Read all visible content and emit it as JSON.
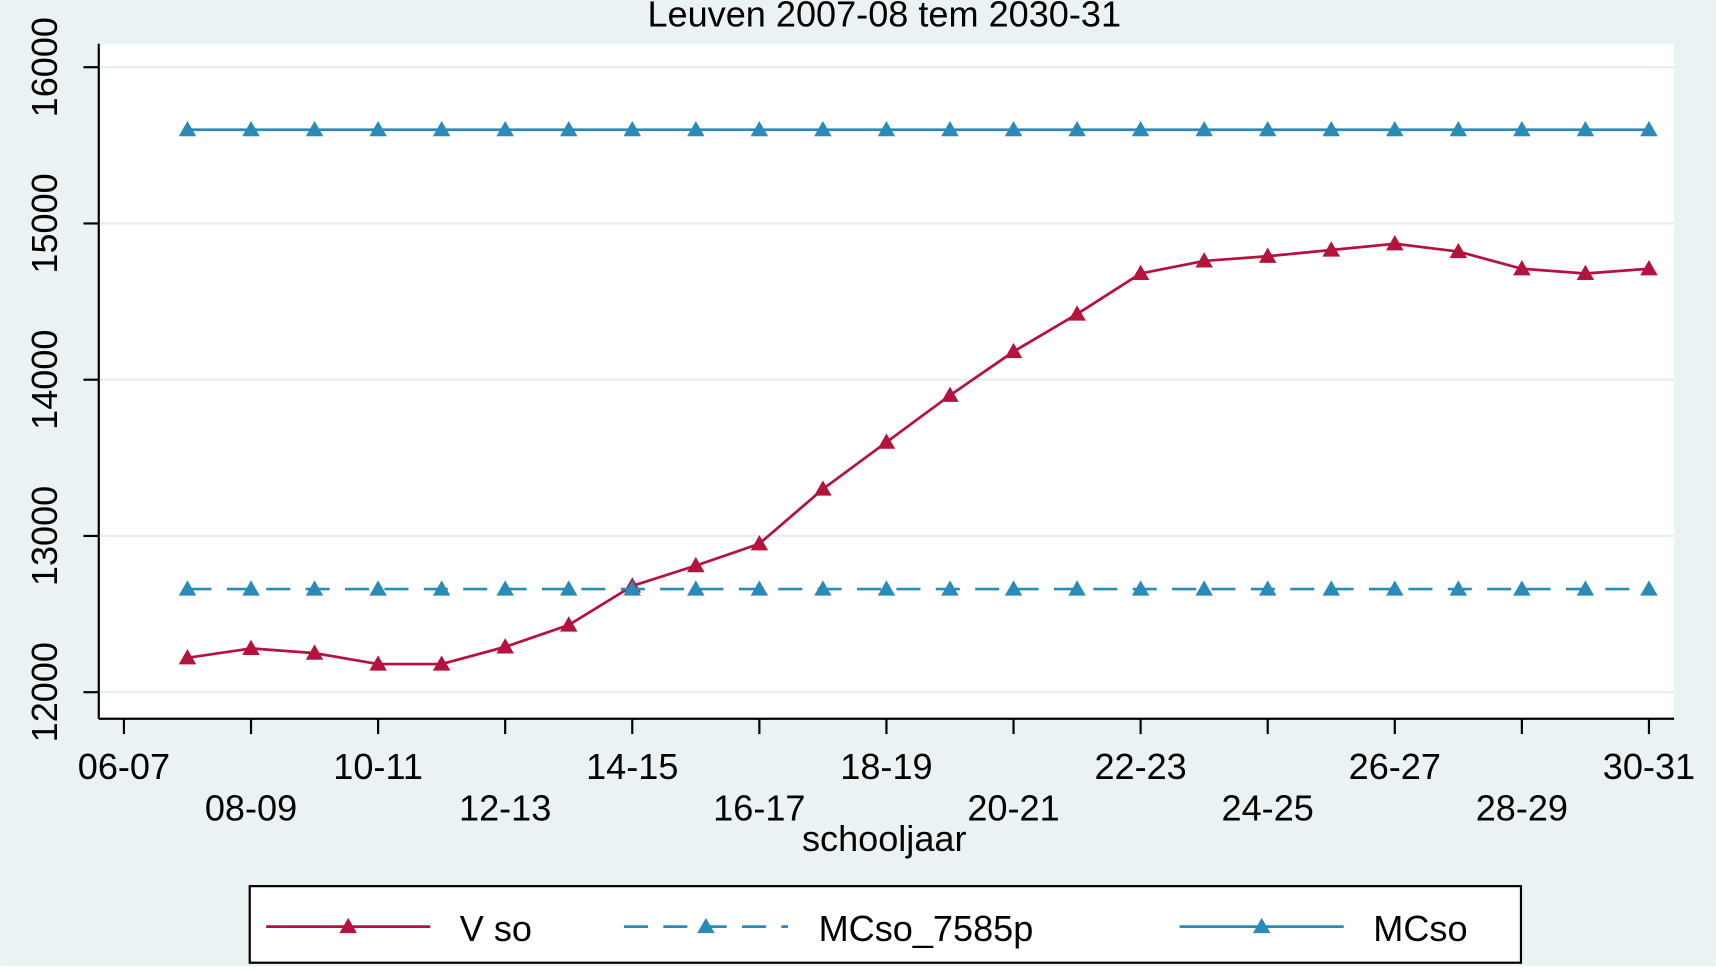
{
  "chart_data": {
    "type": "line",
    "title": "Leuven 2007-08 tem 2030-31",
    "x_label": "schooljaar",
    "categories": [
      "06-07",
      null,
      "08-09",
      null,
      "10-11",
      null,
      "12-13",
      null,
      "14-15",
      null,
      "16-17",
      null,
      "18-19",
      null,
      "20-21",
      null,
      "22-23",
      null,
      "24-25",
      null,
      "26-27",
      null,
      "28-29",
      null,
      "30-31"
    ],
    "series": [
      {
        "name": "V so",
        "color": "#b5123d",
        "style": "solid",
        "values": [
          null,
          12220,
          12280,
          12250,
          12180,
          12180,
          12290,
          12430,
          12680,
          12810,
          12950,
          13300,
          13600,
          13900,
          14180,
          14420,
          14680,
          14760,
          14790,
          14830,
          14870,
          14820,
          14710,
          14680,
          14710
        ]
      },
      {
        "name": "MCso_7585p",
        "color": "#2a8bb8",
        "style": "dashed",
        "values": [
          null,
          12660,
          12660,
          12660,
          12660,
          12660,
          12660,
          12660,
          12660,
          12660,
          12660,
          12660,
          12660,
          12660,
          12660,
          12660,
          12660,
          12660,
          12660,
          12660,
          12660,
          12660,
          12660,
          12660,
          12660
        ]
      },
      {
        "name": "MCso",
        "color": "#2a8bb8",
        "style": "solid",
        "values": [
          null,
          15600,
          15600,
          15600,
          15600,
          15600,
          15600,
          15600,
          15600,
          15600,
          15600,
          15600,
          15600,
          15600,
          15600,
          15600,
          15600,
          15600,
          15600,
          15600,
          15600,
          15600,
          15600,
          15600,
          15600
        ]
      }
    ],
    "ylim": [
      11830,
      16150
    ],
    "yticks": [
      12000,
      13000,
      14000,
      15000,
      16000
    ],
    "grid": true,
    "legend": "bottom"
  }
}
